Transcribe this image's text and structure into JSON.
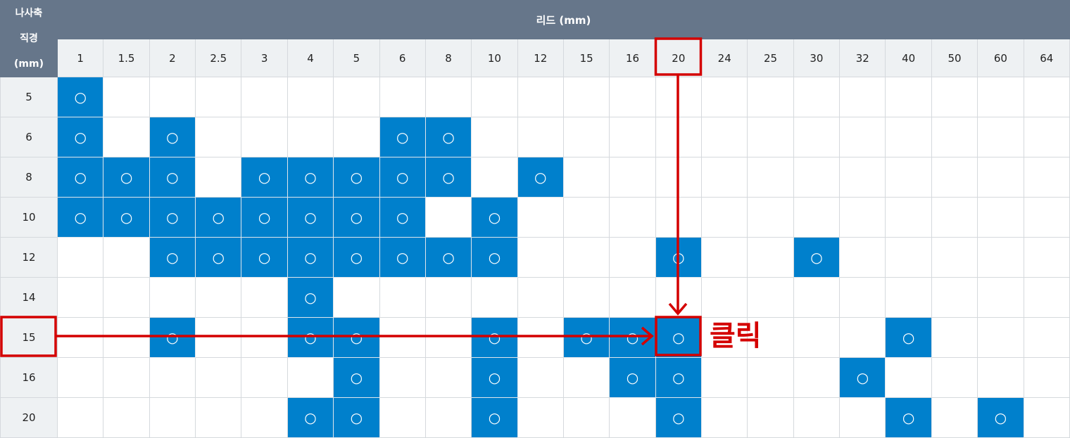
{
  "table": {
    "corner_label_lines": [
      "나사축",
      "직경",
      "(mm)"
    ],
    "lead_header": "리드 (mm)",
    "leads": [
      "1",
      "1.5",
      "2",
      "2.5",
      "3",
      "4",
      "5",
      "6",
      "8",
      "10",
      "12",
      "15",
      "16",
      "20",
      "24",
      "25",
      "30",
      "32",
      "40",
      "50",
      "60",
      "64"
    ],
    "available_mark": "○",
    "rows": [
      {
        "diameter": "5",
        "available": [
          "1"
        ]
      },
      {
        "diameter": "6",
        "available": [
          "1",
          "2",
          "6",
          "8"
        ]
      },
      {
        "diameter": "8",
        "available": [
          "1",
          "1.5",
          "2",
          "3",
          "4",
          "5",
          "6",
          "8",
          "12"
        ]
      },
      {
        "diameter": "10",
        "available": [
          "1",
          "1.5",
          "2",
          "2.5",
          "3",
          "4",
          "5",
          "6",
          "10"
        ]
      },
      {
        "diameter": "12",
        "available": [
          "2",
          "2.5",
          "3",
          "4",
          "5",
          "6",
          "8",
          "10",
          "20",
          "30"
        ]
      },
      {
        "diameter": "14",
        "available": [
          "4"
        ]
      },
      {
        "diameter": "15",
        "available": [
          "2",
          "4",
          "5",
          "10",
          "15",
          "16",
          "20",
          "40"
        ]
      },
      {
        "diameter": "16",
        "available": [
          "5",
          "10",
          "16",
          "20",
          "32"
        ]
      },
      {
        "diameter": "20",
        "available": [
          "4",
          "5",
          "10",
          "20",
          "40",
          "60"
        ]
      }
    ]
  },
  "annotation": {
    "label": "클릭",
    "selected_lead": "20",
    "selected_diameter": "15",
    "color": "#d40000"
  },
  "colors": {
    "header": "#66768a",
    "subheader": "#eef1f3",
    "available": "#0080cc"
  }
}
